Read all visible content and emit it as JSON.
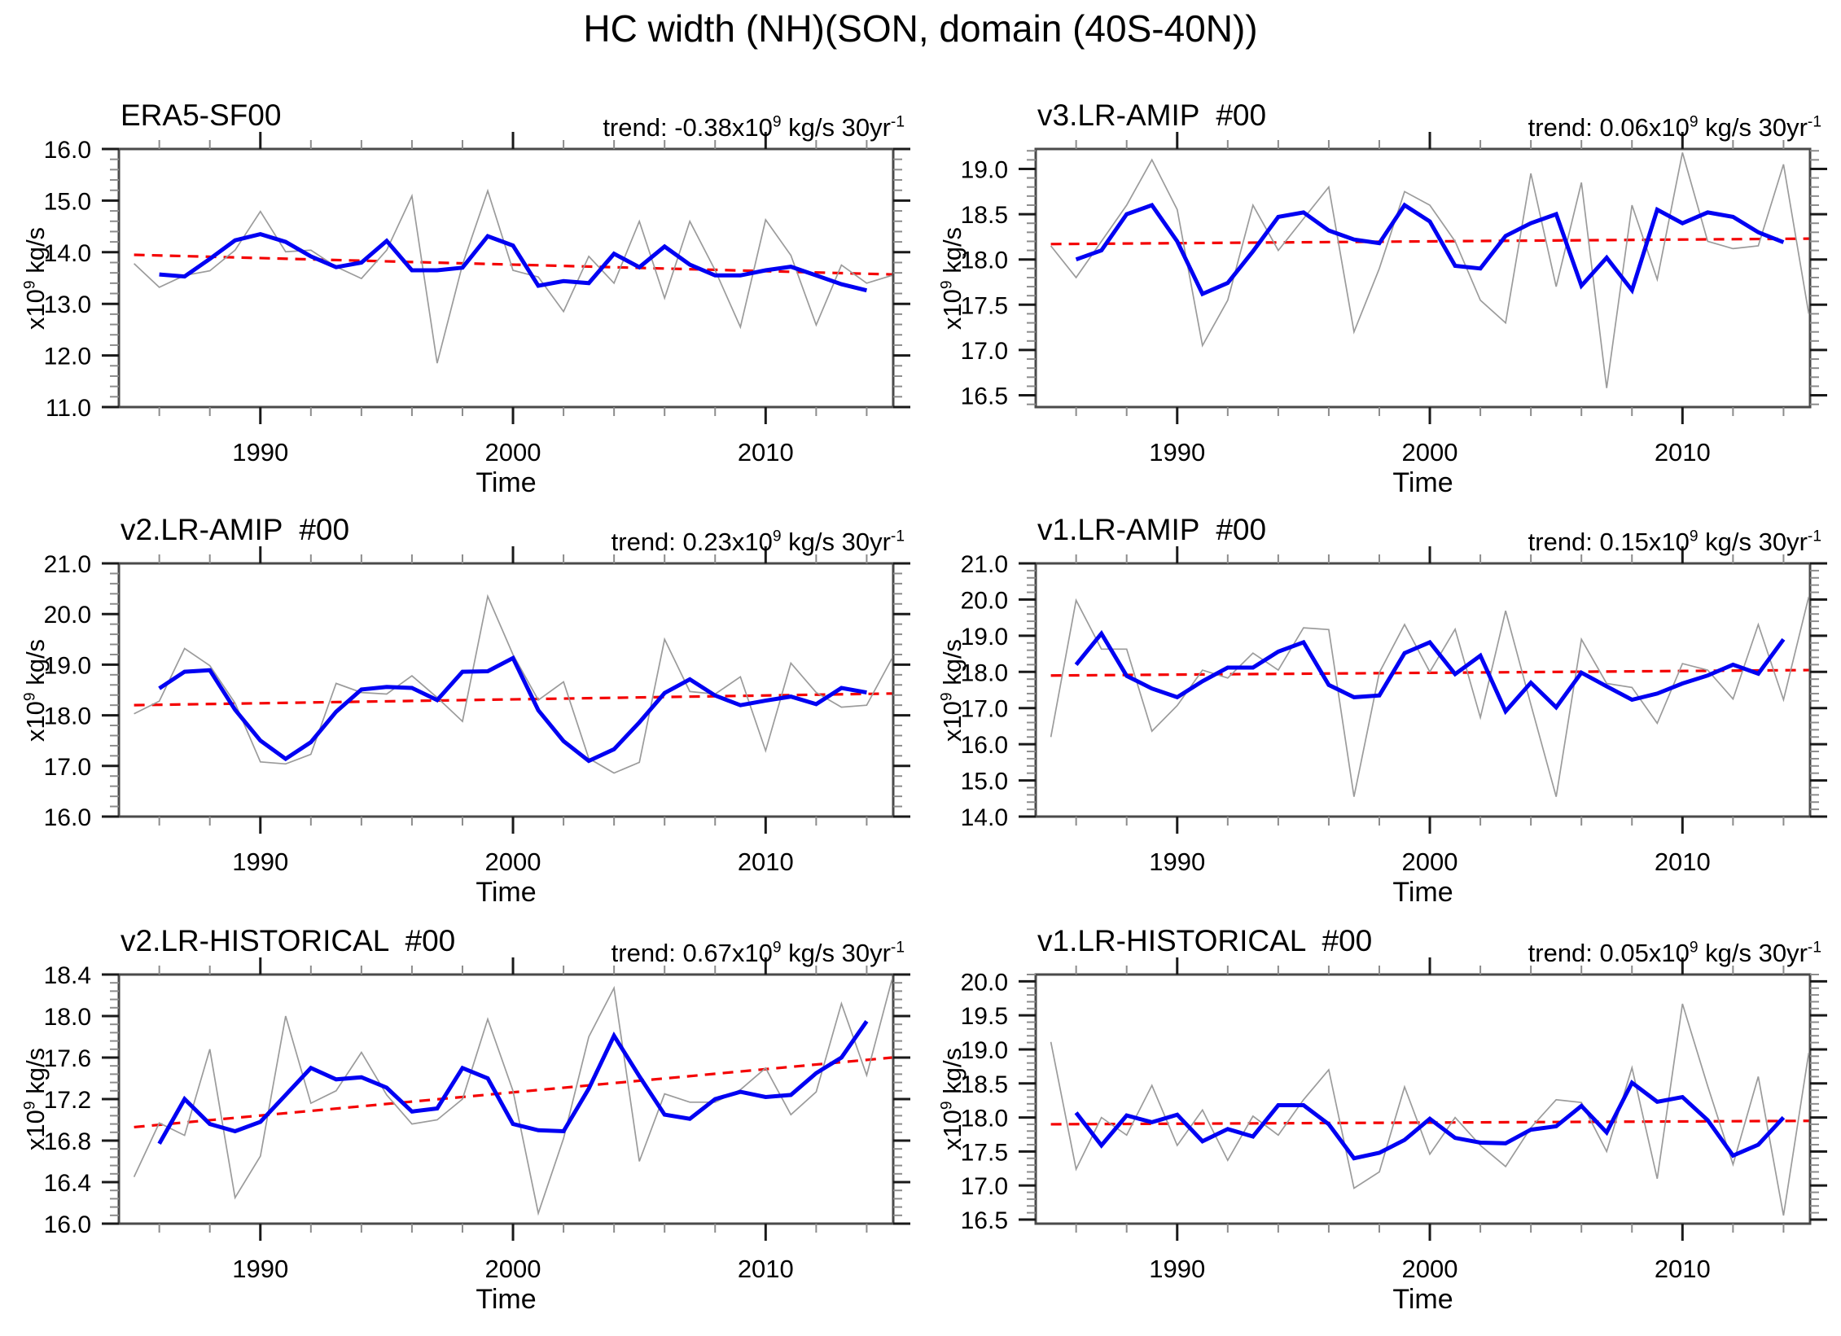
{
  "figure": {
    "title": "HC width (NH)(SON, domain (40S-40N))"
  },
  "colors": {
    "raw_line": "#9b9b9b",
    "smoothed_line": "#0000f2",
    "trend_line": "#f40000",
    "frame": "#4a4a4a",
    "tick_major": "#1a1a1a",
    "tick_minor": "#8c8c8c",
    "text": "#000000"
  },
  "chart_data": [
    {
      "type": "line",
      "title": "ERA5-SF00",
      "trend_label": {
        "pre": "trend: -0.38x10",
        "sup1": "9",
        "mid": " kg/s 30yr",
        "sup2": "-1"
      },
      "trend_per_30yr": -0.38,
      "ylabel": {
        "pre": "x10",
        "sup": "9",
        "post": " kg/s"
      },
      "xlabel": "Time",
      "xlim": [
        1984.4,
        2015.05
      ],
      "xticks": [
        1990,
        2000,
        2010
      ],
      "xtick_minor_step": 2,
      "ylim": [
        11.0,
        16.0
      ],
      "yticks": [
        11.0,
        12.0,
        13.0,
        14.0,
        15.0,
        16.0
      ],
      "ytick_minor_step": 0.2,
      "series": {
        "raw": {
          "start_year": 1985,
          "values": [
            13.78,
            13.32,
            13.55,
            13.64,
            14.04,
            14.79,
            14.01,
            14.04,
            13.72,
            13.49,
            14.04,
            15.09,
            11.85,
            13.76,
            15.19,
            13.65,
            13.52,
            12.85,
            13.92,
            13.4,
            14.6,
            13.11,
            14.6,
            13.65,
            12.55,
            14.63,
            13.94,
            12.59,
            13.75,
            13.4,
            13.55
          ]
        },
        "smoothed": {
          "start_year": 1986,
          "values": [
            13.57,
            13.53,
            13.87,
            14.23,
            14.35,
            14.2,
            13.92,
            13.71,
            13.8,
            14.22,
            13.65,
            13.65,
            13.7,
            14.31,
            14.13,
            13.35,
            13.44,
            13.4,
            13.97,
            13.71,
            14.11,
            13.76,
            13.55,
            13.55,
            13.65,
            13.72,
            13.55,
            13.38,
            13.26
          ]
        },
        "trend": {
          "x": [
            1985,
            2015
          ],
          "y": [
            13.95,
            13.57
          ]
        }
      }
    },
    {
      "type": "line",
      "title": "v3.LR-AMIP  #00",
      "trend_label": {
        "pre": "trend: 0.06x10",
        "sup1": "9",
        "mid": " kg/s 30yr",
        "sup2": "-1"
      },
      "trend_per_30yr": 0.06,
      "ylabel": {
        "pre": "x10",
        "sup": "9",
        "post": " kg/s"
      },
      "xlabel": "Time",
      "xlim": [
        1984.4,
        2015.05
      ],
      "xticks": [
        1990,
        2000,
        2010
      ],
      "xtick_minor_step": 2,
      "ylim": [
        16.37,
        19.22
      ],
      "yticks": [
        16.5,
        17.0,
        17.5,
        18.0,
        18.5,
        19.0
      ],
      "ytick_minor_step": 0.1,
      "series": {
        "raw": {
          "start_year": 1985,
          "values": [
            18.15,
            17.8,
            18.2,
            18.6,
            19.1,
            18.55,
            17.05,
            17.55,
            18.6,
            18.1,
            18.45,
            18.8,
            17.2,
            17.9,
            18.75,
            18.6,
            18.2,
            17.55,
            17.3,
            18.95,
            17.7,
            18.85,
            16.58,
            18.6,
            17.78,
            19.18,
            18.2,
            18.12,
            18.15,
            19.05,
            17.4
          ]
        },
        "smoothed": {
          "start_year": 1986,
          "values": [
            18.0,
            18.1,
            18.5,
            18.6,
            18.2,
            17.62,
            17.74,
            18.09,
            18.47,
            18.52,
            18.32,
            18.22,
            18.18,
            18.6,
            18.42,
            17.93,
            17.9,
            18.26,
            18.4,
            18.5,
            17.71,
            18.02,
            17.66,
            18.55,
            18.4,
            18.52,
            18.47,
            18.3,
            18.19
          ]
        },
        "trend": {
          "x": [
            1985,
            2015
          ],
          "y": [
            18.17,
            18.23
          ]
        }
      }
    },
    {
      "type": "line",
      "title": "v2.LR-AMIP  #00",
      "trend_label": {
        "pre": "trend: 0.23x10",
        "sup1": "9",
        "mid": " kg/s 30yr",
        "sup2": "-1"
      },
      "trend_per_30yr": 0.23,
      "ylabel": {
        "pre": "x10",
        "sup": "9",
        "post": " kg/s"
      },
      "xlabel": "Time",
      "xlim": [
        1984.4,
        2015.05
      ],
      "xticks": [
        1990,
        2000,
        2010
      ],
      "xtick_minor_step": 2,
      "ylim": [
        16.0,
        21.0
      ],
      "yticks": [
        16.0,
        17.0,
        18.0,
        19.0,
        20.0,
        21.0
      ],
      "ytick_minor_step": 0.2,
      "series": {
        "raw": {
          "start_year": 1985,
          "values": [
            18.03,
            18.28,
            19.32,
            18.98,
            18.24,
            17.08,
            17.04,
            17.23,
            18.63,
            18.45,
            18.42,
            18.78,
            18.35,
            17.88,
            20.35,
            19.2,
            18.3,
            18.66,
            17.15,
            16.86,
            17.07,
            19.5,
            18.47,
            18.42,
            18.76,
            17.3,
            19.03,
            18.45,
            18.16,
            18.2,
            19.12
          ]
        },
        "smoothed": {
          "start_year": 1986,
          "values": [
            18.53,
            18.86,
            18.89,
            18.11,
            17.5,
            17.14,
            17.47,
            18.07,
            18.51,
            18.56,
            18.54,
            18.3,
            18.86,
            18.87,
            19.13,
            18.1,
            17.49,
            17.1,
            17.33,
            17.86,
            18.44,
            18.71,
            18.39,
            18.2,
            18.29,
            18.37,
            18.22,
            18.54,
            18.45
          ]
        },
        "trend": {
          "x": [
            1985,
            2015
          ],
          "y": [
            18.2,
            18.43
          ]
        }
      }
    },
    {
      "type": "line",
      "title": "v1.LR-AMIP  #00",
      "trend_label": {
        "pre": "trend: 0.15x10",
        "sup1": "9",
        "mid": " kg/s 30yr",
        "sup2": "-1"
      },
      "trend_per_30yr": 0.15,
      "ylabel": {
        "pre": "x10",
        "sup": "9",
        "post": " kg/s"
      },
      "xlabel": "Time",
      "xlim": [
        1984.4,
        2015.05
      ],
      "xticks": [
        1990,
        2000,
        2010
      ],
      "xtick_minor_step": 2,
      "ylim": [
        14.0,
        21.0
      ],
      "yticks": [
        14.0,
        15.0,
        16.0,
        17.0,
        18.0,
        19.0,
        20.0,
        21.0
      ],
      "ytick_minor_step": 0.2,
      "series": {
        "raw": {
          "start_year": 1985,
          "values": [
            16.2,
            19.98,
            18.63,
            18.63,
            16.36,
            17.07,
            18.05,
            17.83,
            18.52,
            18.05,
            19.22,
            19.17,
            14.55,
            17.98,
            19.31,
            18.0,
            19.18,
            16.74,
            19.69,
            17.1,
            14.55,
            18.9,
            17.68,
            17.57,
            16.58,
            18.23,
            18.05,
            17.25,
            19.31,
            17.23,
            20.08
          ]
        },
        "smoothed": {
          "start_year": 1986,
          "values": [
            18.2,
            19.06,
            17.89,
            17.54,
            17.3,
            17.74,
            18.12,
            18.12,
            18.56,
            18.82,
            17.64,
            17.3,
            17.35,
            18.52,
            18.82,
            17.94,
            18.45,
            16.91,
            17.7,
            17.02,
            17.98,
            17.6,
            17.23,
            17.4,
            17.68,
            17.9,
            18.2,
            17.95,
            18.9
          ]
        },
        "trend": {
          "x": [
            1985,
            2015
          ],
          "y": [
            17.9,
            18.05
          ]
        }
      }
    },
    {
      "type": "line",
      "title": "v2.LR-HISTORICAL  #00",
      "trend_label": {
        "pre": "trend: 0.67x10",
        "sup1": "9",
        "mid": " kg/s 30yr",
        "sup2": "-1"
      },
      "trend_per_30yr": 0.67,
      "ylabel": {
        "pre": "x10",
        "sup": "9",
        "post": " kg/s"
      },
      "xlabel": "Time",
      "xlim": [
        1984.4,
        2015.05
      ],
      "xticks": [
        1990,
        2000,
        2010
      ],
      "xtick_minor_step": 2,
      "ylim": [
        16.0,
        18.4
      ],
      "yticks": [
        16.0,
        16.4,
        16.8,
        17.2,
        17.6,
        18.0,
        18.4
      ],
      "ytick_minor_step": 0.08,
      "series": {
        "raw": {
          "start_year": 1985,
          "values": [
            16.45,
            16.97,
            16.85,
            17.68,
            16.25,
            16.65,
            18.0,
            17.16,
            17.28,
            17.65,
            17.24,
            16.96,
            17.0,
            17.2,
            17.97,
            17.28,
            16.1,
            16.82,
            17.8,
            18.27,
            16.6,
            17.25,
            17.17,
            17.17,
            17.29,
            17.5,
            17.05,
            17.27,
            18.12,
            17.43,
            18.35
          ]
        },
        "smoothed": {
          "start_year": 1986,
          "values": [
            16.77,
            17.2,
            16.96,
            16.89,
            16.98,
            17.24,
            17.5,
            17.39,
            17.41,
            17.31,
            17.08,
            17.11,
            17.5,
            17.4,
            16.96,
            16.9,
            16.89,
            17.3,
            17.81,
            17.42,
            17.05,
            17.01,
            17.2,
            17.27,
            17.22,
            17.24,
            17.45,
            17.6,
            17.95
          ]
        },
        "trend": {
          "x": [
            1985,
            2015
          ],
          "y": [
            16.93,
            17.6
          ]
        }
      }
    },
    {
      "type": "line",
      "title": "v1.LR-HISTORICAL  #00",
      "trend_label": {
        "pre": "trend: 0.05x10",
        "sup1": "9",
        "mid": " kg/s 30yr",
        "sup2": "-1"
      },
      "trend_per_30yr": 0.05,
      "ylabel": {
        "pre": "x10",
        "sup": "9",
        "post": " kg/s"
      },
      "xlabel": "Time",
      "xlim": [
        1984.4,
        2015.05
      ],
      "xticks": [
        1990,
        2000,
        2010
      ],
      "xtick_minor_step": 2,
      "ylim": [
        16.44,
        20.1
      ],
      "yticks": [
        16.5,
        17.0,
        17.5,
        18.0,
        18.5,
        19.0,
        19.5,
        20.0
      ],
      "ytick_minor_step": 0.1,
      "series": {
        "raw": {
          "start_year": 1985,
          "values": [
            19.11,
            17.24,
            18.0,
            17.74,
            18.47,
            17.59,
            18.11,
            17.37,
            18.02,
            17.74,
            18.26,
            18.7,
            16.96,
            17.2,
            18.45,
            17.46,
            18.0,
            17.59,
            17.28,
            17.85,
            18.26,
            18.22,
            17.5,
            18.73,
            17.1,
            19.67,
            18.46,
            17.31,
            18.6,
            16.56,
            18.95
          ]
        },
        "smoothed": {
          "start_year": 1986,
          "values": [
            18.07,
            17.59,
            18.03,
            17.93,
            18.04,
            17.65,
            17.83,
            17.72,
            18.18,
            18.18,
            17.9,
            17.4,
            17.48,
            17.67,
            17.98,
            17.7,
            17.63,
            17.62,
            17.82,
            17.87,
            18.17,
            17.78,
            18.51,
            18.23,
            18.3,
            17.96,
            17.44,
            17.6,
            18.0
          ]
        },
        "trend": {
          "x": [
            1985,
            2015
          ],
          "y": [
            17.9,
            17.95
          ]
        }
      }
    }
  ]
}
